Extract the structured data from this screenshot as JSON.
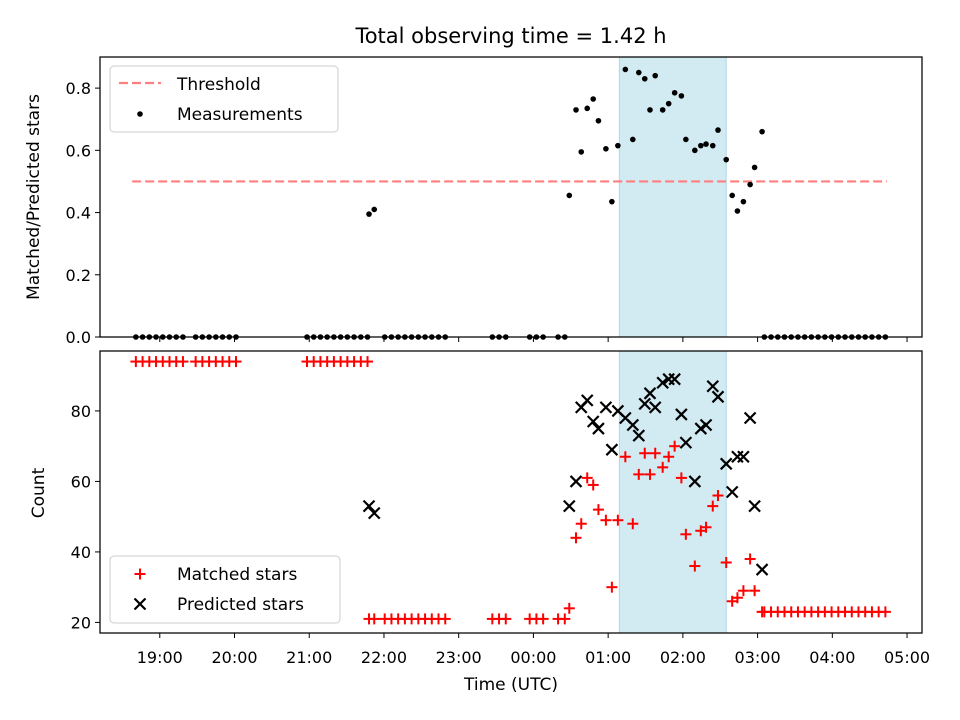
{
  "title": "Total observing time = 1.42 h",
  "chart_data": [
    {
      "type": "scatter",
      "panel": "top",
      "ylabel": "Matched/Predicted stars",
      "xlabel": "",
      "ylim": [
        0,
        0.9
      ],
      "yticks": [
        0.0,
        0.2,
        0.4,
        0.6,
        0.8
      ],
      "ytick_labels": [
        "0.0",
        "0.2",
        "0.4",
        "0.6",
        "0.8"
      ],
      "grid": false,
      "legend": "top-left",
      "threshold": {
        "name": "Threshold",
        "value": 0.5,
        "x_start": 18.63,
        "x_end": 28.73,
        "color": "#ff7f7f",
        "style": "dashed"
      },
      "highlight_band": {
        "x_start": 25.15,
        "x_end": 26.58,
        "color": "#add8e6"
      },
      "series": [
        {
          "name": "Measurements",
          "color": "#000000",
          "marker": "dot",
          "points": [
            [
              18.68,
              0
            ],
            [
              18.77,
              0
            ],
            [
              18.86,
              0
            ],
            [
              18.95,
              0
            ],
            [
              19.04,
              0
            ],
            [
              19.13,
              0
            ],
            [
              19.22,
              0
            ],
            [
              19.31,
              0
            ],
            [
              19.48,
              0
            ],
            [
              19.57,
              0
            ],
            [
              19.66,
              0
            ],
            [
              19.75,
              0
            ],
            [
              19.84,
              0
            ],
            [
              19.93,
              0
            ],
            [
              20.02,
              0
            ],
            [
              20.97,
              0
            ],
            [
              21.06,
              0
            ],
            [
              21.15,
              0
            ],
            [
              21.24,
              0
            ],
            [
              21.33,
              0
            ],
            [
              21.42,
              0
            ],
            [
              21.51,
              0
            ],
            [
              21.6,
              0
            ],
            [
              21.69,
              0
            ],
            [
              21.78,
              0
            ],
            [
              21.8,
              0.395
            ],
            [
              21.87,
              0.41
            ],
            [
              22.01,
              0
            ],
            [
              22.1,
              0
            ],
            [
              22.19,
              0
            ],
            [
              22.28,
              0
            ],
            [
              22.37,
              0
            ],
            [
              22.46,
              0
            ],
            [
              22.55,
              0
            ],
            [
              22.64,
              0
            ],
            [
              22.73,
              0
            ],
            [
              22.82,
              0
            ],
            [
              23.45,
              0
            ],
            [
              23.54,
              0
            ],
            [
              23.63,
              0
            ],
            [
              23.95,
              0
            ],
            [
              24.04,
              0
            ],
            [
              24.13,
              0
            ],
            [
              24.33,
              0
            ],
            [
              24.42,
              0
            ],
            [
              24.48,
              0.455
            ],
            [
              24.57,
              0.73
            ],
            [
              24.64,
              0.595
            ],
            [
              24.72,
              0.735
            ],
            [
              24.8,
              0.765
            ],
            [
              24.87,
              0.695
            ],
            [
              24.97,
              0.605
            ],
            [
              25.05,
              0.435
            ],
            [
              25.13,
              0.615
            ],
            [
              25.23,
              0.86
            ],
            [
              25.33,
              0.635
            ],
            [
              25.41,
              0.85
            ],
            [
              25.49,
              0.83
            ],
            [
              25.56,
              0.73
            ],
            [
              25.63,
              0.84
            ],
            [
              25.73,
              0.73
            ],
            [
              25.81,
              0.75
            ],
            [
              25.89,
              0.785
            ],
            [
              25.98,
              0.775
            ],
            [
              26.04,
              0.635
            ],
            [
              26.16,
              0.6
            ],
            [
              26.24,
              0.615
            ],
            [
              26.31,
              0.62
            ],
            [
              26.4,
              0.615
            ],
            [
              26.47,
              0.665
            ],
            [
              26.58,
              0.57
            ],
            [
              26.66,
              0.455
            ],
            [
              26.73,
              0.405
            ],
            [
              26.81,
              0.435
            ],
            [
              26.9,
              0.49
            ],
            [
              26.96,
              0.545
            ],
            [
              27.06,
              0.66
            ],
            [
              27.09,
              0
            ],
            [
              27.18,
              0
            ],
            [
              27.27,
              0
            ],
            [
              27.36,
              0
            ],
            [
              27.45,
              0
            ],
            [
              27.54,
              0
            ],
            [
              27.63,
              0
            ],
            [
              27.72,
              0
            ],
            [
              27.81,
              0
            ],
            [
              27.9,
              0
            ],
            [
              27.99,
              0
            ],
            [
              28.08,
              0
            ],
            [
              28.17,
              0
            ],
            [
              28.26,
              0
            ],
            [
              28.35,
              0
            ],
            [
              28.44,
              0
            ],
            [
              28.53,
              0
            ],
            [
              28.62,
              0
            ],
            [
              28.71,
              0
            ]
          ]
        }
      ]
    },
    {
      "type": "scatter",
      "panel": "bottom",
      "ylabel": "Count",
      "xlabel": "Time (UTC)",
      "xlim": [
        18.2,
        29.2
      ],
      "xticks": [
        19,
        20,
        21,
        22,
        23,
        24,
        25,
        26,
        27,
        28,
        29
      ],
      "xtick_labels": [
        "19:00",
        "20:00",
        "21:00",
        "22:00",
        "23:00",
        "00:00",
        "01:00",
        "02:00",
        "03:00",
        "04:00",
        "05:00"
      ],
      "ylim": [
        17,
        97
      ],
      "yticks": [
        20,
        40,
        60,
        80
      ],
      "ytick_labels": [
        "20",
        "40",
        "60",
        "80"
      ],
      "grid": false,
      "legend": "bottom-left",
      "highlight_band": {
        "x_start": 25.15,
        "x_end": 26.58,
        "color": "#add8e6"
      },
      "series": [
        {
          "name": "Matched stars",
          "color": "#ff0000",
          "marker": "plus",
          "points": [
            [
              18.68,
              94
            ],
            [
              18.77,
              94
            ],
            [
              18.86,
              94
            ],
            [
              18.95,
              94
            ],
            [
              19.04,
              94
            ],
            [
              19.13,
              94
            ],
            [
              19.22,
              94
            ],
            [
              19.31,
              94
            ],
            [
              19.48,
              94
            ],
            [
              19.57,
              94
            ],
            [
              19.66,
              94
            ],
            [
              19.75,
              94
            ],
            [
              19.84,
              94
            ],
            [
              19.93,
              94
            ],
            [
              20.02,
              94
            ],
            [
              20.97,
              94
            ],
            [
              21.06,
              94
            ],
            [
              21.15,
              94
            ],
            [
              21.24,
              94
            ],
            [
              21.33,
              94
            ],
            [
              21.42,
              94
            ],
            [
              21.51,
              94
            ],
            [
              21.6,
              94
            ],
            [
              21.69,
              94
            ],
            [
              21.78,
              94
            ],
            [
              21.8,
              21
            ],
            [
              21.87,
              21
            ],
            [
              22.01,
              21
            ],
            [
              22.1,
              21
            ],
            [
              22.19,
              21
            ],
            [
              22.28,
              21
            ],
            [
              22.37,
              21
            ],
            [
              22.46,
              21
            ],
            [
              22.55,
              21
            ],
            [
              22.64,
              21
            ],
            [
              22.73,
              21
            ],
            [
              22.82,
              21
            ],
            [
              23.45,
              21
            ],
            [
              23.54,
              21
            ],
            [
              23.63,
              21
            ],
            [
              23.95,
              21
            ],
            [
              24.04,
              21
            ],
            [
              24.13,
              21
            ],
            [
              24.33,
              21
            ],
            [
              24.42,
              21
            ],
            [
              24.48,
              24
            ],
            [
              24.57,
              44
            ],
            [
              24.64,
              48
            ],
            [
              24.72,
              61
            ],
            [
              24.8,
              59
            ],
            [
              24.87,
              52
            ],
            [
              24.97,
              49
            ],
            [
              25.05,
              30
            ],
            [
              25.13,
              49
            ],
            [
              25.23,
              67
            ],
            [
              25.33,
              48
            ],
            [
              25.41,
              62
            ],
            [
              25.49,
              68
            ],
            [
              25.56,
              62
            ],
            [
              25.63,
              68
            ],
            [
              25.73,
              64
            ],
            [
              25.81,
              67
            ],
            [
              25.89,
              70
            ],
            [
              25.98,
              61
            ],
            [
              26.04,
              45
            ],
            [
              26.16,
              36
            ],
            [
              26.24,
              46
            ],
            [
              26.31,
              47
            ],
            [
              26.4,
              53
            ],
            [
              26.47,
              56
            ],
            [
              26.58,
              37
            ],
            [
              26.66,
              26
            ],
            [
              26.73,
              27
            ],
            [
              26.81,
              29
            ],
            [
              26.9,
              38
            ],
            [
              26.96,
              29
            ],
            [
              27.06,
              23
            ],
            [
              27.09,
              23
            ],
            [
              27.18,
              23
            ],
            [
              27.27,
              23
            ],
            [
              27.36,
              23
            ],
            [
              27.45,
              23
            ],
            [
              27.54,
              23
            ],
            [
              27.63,
              23
            ],
            [
              27.72,
              23
            ],
            [
              27.81,
              23
            ],
            [
              27.9,
              23
            ],
            [
              27.99,
              23
            ],
            [
              28.08,
              23
            ],
            [
              28.17,
              23
            ],
            [
              28.26,
              23
            ],
            [
              28.35,
              23
            ],
            [
              28.44,
              23
            ],
            [
              28.53,
              23
            ],
            [
              28.62,
              23
            ],
            [
              28.71,
              23
            ]
          ]
        },
        {
          "name": "Predicted stars",
          "color": "#000000",
          "marker": "x",
          "points": [
            [
              21.8,
              53
            ],
            [
              21.87,
              51
            ],
            [
              24.48,
              53
            ],
            [
              24.57,
              60
            ],
            [
              24.64,
              81
            ],
            [
              24.72,
              83
            ],
            [
              24.8,
              77
            ],
            [
              24.87,
              75
            ],
            [
              24.97,
              81
            ],
            [
              25.05,
              69
            ],
            [
              25.13,
              80
            ],
            [
              25.23,
              78
            ],
            [
              25.33,
              76
            ],
            [
              25.41,
              73
            ],
            [
              25.49,
              82
            ],
            [
              25.56,
              85
            ],
            [
              25.63,
              81
            ],
            [
              25.73,
              88
            ],
            [
              25.81,
              89
            ],
            [
              25.89,
              89
            ],
            [
              25.98,
              79
            ],
            [
              26.04,
              71
            ],
            [
              26.16,
              60
            ],
            [
              26.24,
              75
            ],
            [
              26.31,
              76
            ],
            [
              26.4,
              87
            ],
            [
              26.47,
              84
            ],
            [
              26.58,
              65
            ],
            [
              26.66,
              57
            ],
            [
              26.73,
              67
            ],
            [
              26.81,
              67
            ],
            [
              26.9,
              78
            ],
            [
              26.96,
              53
            ],
            [
              27.06,
              35
            ]
          ]
        }
      ]
    }
  ]
}
